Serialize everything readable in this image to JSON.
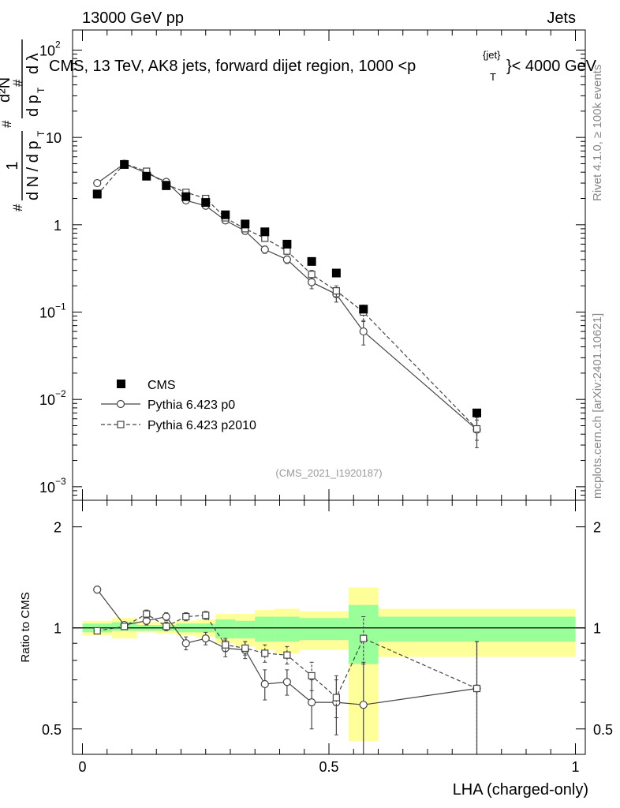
{
  "header": {
    "left": "13000 GeV pp",
    "right": "Jets"
  },
  "chart_data": [
    {
      "type": "scatter",
      "title": "CMS, 13 TeV, AK8 jets, forward dijet region, 1000 <p",
      "title_sup": "{jet}",
      "title_sub": "T",
      "title_suffix": "}< 4000 GeV",
      "ylabel_parts": {
        "hash": "#",
        "one": "1",
        "dn": "d N / d p",
        "dn_sub": "T",
        "d2n": "d²N",
        "dp": "d p",
        "dp_sub": "T",
        "dlambda": "d λ"
      },
      "yscale": "log",
      "ylim": [
        0.0007,
        170
      ],
      "xlim": [
        -0.02,
        1.02
      ],
      "y_ticks": [
        {
          "value": 0.001,
          "base": "10",
          "exp": "−3"
        },
        {
          "value": 0.01,
          "base": "10",
          "exp": "−2"
        },
        {
          "value": 0.1,
          "base": "10",
          "exp": "−1"
        },
        {
          "value": 1,
          "base": "1",
          "exp": ""
        },
        {
          "value": 10,
          "base": "10",
          "exp": ""
        },
        {
          "value": 100,
          "base": "10",
          "exp": "2"
        }
      ],
      "side_label_top": "Rivet 4.1.0, ≥ 100k events",
      "side_label_bottom": "mcplots.cern.ch [arXiv:2401.10621]",
      "analysis_id": "(CMS_2021_I1920187)",
      "legend_position": "lower-left",
      "series": [
        {
          "name": "CMS",
          "marker": "filled-square",
          "x": [
            0.03,
            0.085,
            0.13,
            0.17,
            0.21,
            0.25,
            0.29,
            0.33,
            0.37,
            0.415,
            0.465,
            0.515,
            0.57,
            0.8
          ],
          "values": [
            2.25,
            4.9,
            3.6,
            2.8,
            2.1,
            1.8,
            1.3,
            1.02,
            0.83,
            0.6,
            0.38,
            0.28,
            0.108,
            0.007
          ]
        },
        {
          "name": "Pythia 6.423 p0",
          "marker": "open-circle",
          "line": "solid",
          "x": [
            0.03,
            0.085,
            0.13,
            0.17,
            0.21,
            0.25,
            0.29,
            0.33,
            0.37,
            0.415,
            0.465,
            0.515,
            0.57,
            0.8
          ],
          "values": [
            3.0,
            5.0,
            3.9,
            3.1,
            1.9,
            1.65,
            1.12,
            0.85,
            0.52,
            0.4,
            0.22,
            0.16,
            0.06,
            0.0045
          ],
          "err": [
            0.08,
            0.1,
            0.08,
            0.06,
            0.05,
            0.04,
            0.04,
            0.04,
            0.05,
            0.04,
            0.035,
            0.03,
            0.018,
            0.0017
          ]
        },
        {
          "name": "Pythia 6.423 p2010",
          "marker": "open-square",
          "line": "dashed",
          "x": [
            0.03,
            0.085,
            0.13,
            0.17,
            0.21,
            0.25,
            0.29,
            0.33,
            0.37,
            0.415,
            0.465,
            0.515,
            0.57,
            0.8
          ],
          "values": [
            2.2,
            5.0,
            4.1,
            2.9,
            2.35,
            2.0,
            1.2,
            0.9,
            0.7,
            0.5,
            0.27,
            0.175,
            0.1,
            0.0046
          ],
          "err": [
            0.06,
            0.1,
            0.08,
            0.06,
            0.05,
            0.05,
            0.04,
            0.04,
            0.05,
            0.04,
            0.03,
            0.025,
            0.02,
            0.0012
          ]
        }
      ]
    },
    {
      "type": "scatter",
      "ylabel": "Ratio to CMS",
      "xlabel": "LHA (charged-only)",
      "yscale": "log",
      "ylim": [
        0.42,
        2.4
      ],
      "xlim": [
        -0.02,
        1.02
      ],
      "y_ticks": [
        {
          "value": 0.5,
          "label": "0.5"
        },
        {
          "value": 1,
          "label": "1"
        },
        {
          "value": 2,
          "label": "2"
        }
      ],
      "x_ticks": [
        {
          "value": 0,
          "label": "0"
        },
        {
          "value": 0.5,
          "label": "0.5"
        },
        {
          "value": 1,
          "label": "1"
        }
      ],
      "bands": [
        {
          "x0": 0.0,
          "x1": 0.06,
          "inner": [
            0.97,
            1.03
          ],
          "outer": [
            0.95,
            1.05
          ]
        },
        {
          "x0": 0.06,
          "x1": 0.11,
          "inner": [
            0.98,
            1.04
          ],
          "outer": [
            0.93,
            1.07
          ]
        },
        {
          "x0": 0.11,
          "x1": 0.15,
          "inner": [
            0.98,
            1.02
          ],
          "outer": [
            0.97,
            1.04
          ]
        },
        {
          "x0": 0.15,
          "x1": 0.19,
          "inner": [
            0.98,
            1.02
          ],
          "outer": [
            0.96,
            1.04
          ]
        },
        {
          "x0": 0.19,
          "x1": 0.23,
          "inner": [
            0.97,
            1.03
          ],
          "outer": [
            0.95,
            1.05
          ]
        },
        {
          "x0": 0.23,
          "x1": 0.27,
          "inner": [
            0.97,
            1.03
          ],
          "outer": [
            0.94,
            1.06
          ]
        },
        {
          "x0": 0.27,
          "x1": 0.31,
          "inner": [
            0.93,
            1.06
          ],
          "outer": [
            0.9,
            1.1
          ]
        },
        {
          "x0": 0.31,
          "x1": 0.35,
          "inner": [
            0.93,
            1.05
          ],
          "outer": [
            0.88,
            1.1
          ]
        },
        {
          "x0": 0.35,
          "x1": 0.39,
          "inner": [
            0.91,
            1.08
          ],
          "outer": [
            0.86,
            1.13
          ]
        },
        {
          "x0": 0.39,
          "x1": 0.44,
          "inner": [
            0.91,
            1.08
          ],
          "outer": [
            0.84,
            1.14
          ]
        },
        {
          "x0": 0.44,
          "x1": 0.54,
          "inner": [
            0.92,
            1.07
          ],
          "outer": [
            0.86,
            1.12
          ]
        },
        {
          "x0": 0.54,
          "x1": 0.6,
          "inner": [
            0.78,
            1.17
          ],
          "outer": [
            0.46,
            1.32
          ]
        },
        {
          "x0": 0.6,
          "x1": 1.0,
          "inner": [
            0.91,
            1.08
          ],
          "outer": [
            0.82,
            1.14
          ]
        }
      ],
      "series": [
        {
          "name": "Pythia 6.423 p0",
          "x": [
            0.03,
            0.085,
            0.13,
            0.17,
            0.21,
            0.25,
            0.29,
            0.33,
            0.37,
            0.415,
            0.465,
            0.515,
            0.57,
            0.8
          ],
          "values": [
            1.3,
            1.02,
            1.05,
            1.08,
            0.9,
            0.93,
            0.87,
            0.86,
            0.68,
            0.69,
            0.6,
            0.6,
            0.59,
            0.66
          ],
          "err": [
            0.03,
            0.02,
            0.03,
            0.03,
            0.04,
            0.04,
            0.05,
            0.05,
            0.07,
            0.06,
            0.1,
            0.12,
            0.2,
            0.25
          ]
        },
        {
          "name": "Pythia 6.423 p2010",
          "x": [
            0.03,
            0.085,
            0.13,
            0.17,
            0.21,
            0.25,
            0.29,
            0.33,
            0.37,
            0.415,
            0.465,
            0.515,
            0.57,
            0.8
          ],
          "values": [
            0.98,
            1.01,
            1.1,
            1.01,
            1.08,
            1.09,
            0.89,
            0.87,
            0.84,
            0.83,
            0.72,
            0.62,
            0.93,
            0.66
          ],
          "err": [
            0.02,
            0.02,
            0.03,
            0.03,
            0.03,
            0.03,
            0.04,
            0.04,
            0.05,
            0.05,
            0.07,
            0.08,
            0.15,
            0.25
          ]
        }
      ]
    }
  ]
}
